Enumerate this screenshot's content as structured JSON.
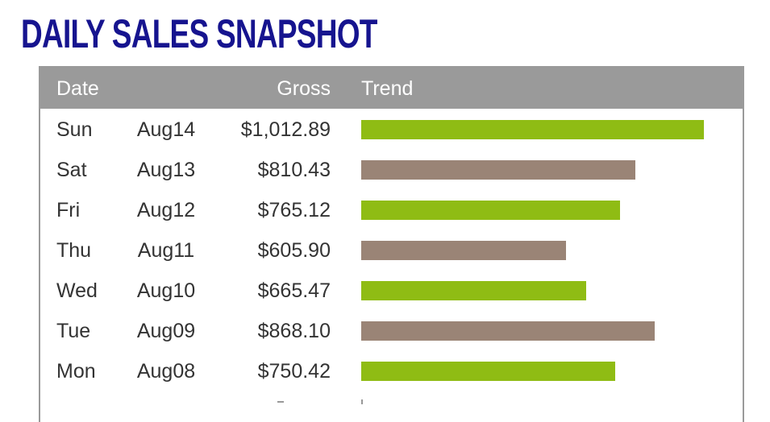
{
  "title": "DAILY SALES SNAPSHOT",
  "colors": {
    "title": "#16148f",
    "header_bg": "#9a9a9a",
    "bar_green": "#8fbc14",
    "bar_brown": "#9a8476"
  },
  "table": {
    "headers": {
      "date": "Date",
      "gross": "Gross",
      "trend": "Trend"
    },
    "max_value": 1012.89,
    "rows": [
      {
        "day": "Sun",
        "date": "Aug14",
        "gross": "$1,012.89",
        "value": 1012.89,
        "color": "green"
      },
      {
        "day": "Sat",
        "date": "Aug13",
        "gross": "$810.43",
        "value": 810.43,
        "color": "brown"
      },
      {
        "day": "Fri",
        "date": "Aug12",
        "gross": "$765.12",
        "value": 765.12,
        "color": "green"
      },
      {
        "day": "Thu",
        "date": "Aug11",
        "gross": "$605.90",
        "value": 605.9,
        "color": "brown"
      },
      {
        "day": "Wed",
        "date": "Aug10",
        "gross": "$665.47",
        "value": 665.47,
        "color": "green"
      },
      {
        "day": "Tue",
        "date": "Aug09",
        "gross": "$868.10",
        "value": 868.1,
        "color": "brown"
      },
      {
        "day": "Mon",
        "date": "Aug08",
        "gross": "$750.42",
        "value": 750.42,
        "color": "green"
      }
    ]
  }
}
